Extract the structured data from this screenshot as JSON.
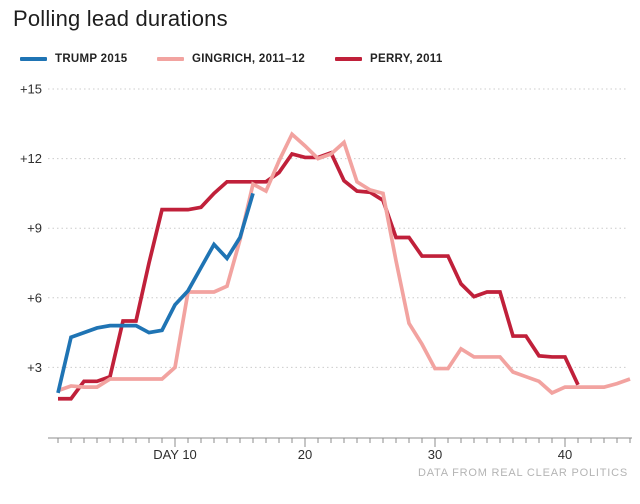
{
  "page": {
    "title": "Polling lead durations",
    "footer": "DATA FROM REAL CLEAR POLITICS"
  },
  "chart_data": {
    "type": "line",
    "title": "Polling lead durations",
    "source": "DATA FROM REAL CLEAR POLITICS",
    "grid": "horizontal-dotted",
    "legend_position": "top",
    "x_axis": {
      "unit": "day of polling lead",
      "day_min": 1,
      "day_max": 45,
      "minor_tick_every": 1,
      "major_ticks": [
        {
          "day": 10,
          "label": "DAY 10"
        },
        {
          "day": 20,
          "label": "20"
        },
        {
          "day": 30,
          "label": "30"
        },
        {
          "day": 40,
          "label": "40"
        }
      ]
    },
    "y_axis": {
      "unit": "polling lead, percentage points",
      "range": [
        0,
        15.5
      ],
      "ticks": [
        {
          "value": 3,
          "label": "+3"
        },
        {
          "value": 6,
          "label": "+6"
        },
        {
          "value": 9,
          "label": "+9"
        },
        {
          "value": 12,
          "label": "+12"
        },
        {
          "value": 15,
          "label": "+15"
        }
      ]
    },
    "series": [
      {
        "id": "trump",
        "name": "TRUMP 2015",
        "color": "#1f74b4",
        "start_day": 1,
        "values": [
          1.9,
          4.3,
          4.5,
          4.7,
          4.8,
          4.8,
          4.8,
          4.5,
          4.6,
          5.7,
          6.3,
          7.3,
          8.3,
          7.7,
          8.6,
          10.5
        ]
      },
      {
        "id": "gingrich",
        "name": "GINGRICH, 2011–12",
        "color": "#f2a3a0",
        "start_day": 1,
        "values": [
          2.0,
          2.2,
          2.15,
          2.15,
          2.5,
          2.5,
          2.5,
          2.5,
          2.5,
          3.0,
          6.25,
          6.25,
          6.25,
          6.5,
          8.5,
          10.9,
          10.6,
          11.9,
          13.05,
          12.55,
          12.0,
          12.2,
          12.7,
          11.0,
          10.65,
          10.5,
          7.6,
          4.9,
          4.0,
          2.95,
          2.95,
          3.8,
          3.45,
          3.45,
          3.45,
          2.8,
          2.6,
          2.4,
          1.9,
          2.15,
          2.15,
          2.15,
          2.15,
          2.3,
          2.5
        ]
      },
      {
        "id": "perry",
        "name": "PERRY, 2011",
        "color": "#c0203a",
        "start_day": 1,
        "values": [
          1.65,
          1.65,
          2.4,
          2.4,
          2.6,
          5.0,
          5.0,
          7.5,
          9.8,
          9.8,
          9.8,
          9.9,
          10.5,
          11.0,
          11.0,
          11.0,
          11.0,
          11.4,
          12.2,
          12.05,
          12.05,
          12.25,
          11.05,
          10.6,
          10.55,
          10.2,
          8.6,
          8.6,
          7.8,
          7.8,
          7.8,
          6.6,
          6.05,
          6.25,
          6.25,
          4.35,
          4.35,
          3.5,
          3.45,
          3.45,
          2.25
        ]
      }
    ]
  }
}
